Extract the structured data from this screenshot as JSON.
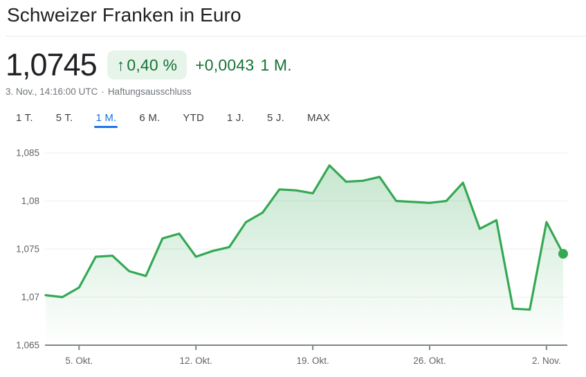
{
  "header": {
    "title": "Schweizer Franken in Euro"
  },
  "quote": {
    "price": "1,0745",
    "change_arrow": "↑",
    "change_percent": "0,40 %",
    "change_abs": "+0,0043",
    "change_period": "1 M.",
    "timestamp": "3. Nov., 14:16:00 UTC",
    "separator": "·",
    "disclaimer": "Haftungsausschluss"
  },
  "tabs": [
    {
      "label": "1 T."
    },
    {
      "label": "5 T."
    },
    {
      "label": "1 M."
    },
    {
      "label": "6 M."
    },
    {
      "label": "YTD"
    },
    {
      "label": "1 J."
    },
    {
      "label": "5 J."
    },
    {
      "label": "MAX"
    }
  ],
  "colors": {
    "line_green": "#34a853",
    "text_green": "#137333",
    "badge_bg": "#e6f4ea",
    "active_tab_blue": "#1a73e8",
    "axis_gray": "#80868b",
    "grid_gray": "#eceef0"
  },
  "chart_data": {
    "type": "line",
    "title": "Schweizer Franken in Euro",
    "subtitle": "1 M.",
    "values": [
      1.0702,
      1.07,
      1.071,
      1.0742,
      1.0743,
      1.0727,
      1.0722,
      1.0761,
      1.0766,
      1.0742,
      1.0748,
      1.0752,
      1.0778,
      1.0788,
      1.0812,
      1.0811,
      1.0808,
      1.0837,
      1.082,
      1.0821,
      1.0825,
      1.08,
      1.0799,
      1.0798,
      1.08,
      1.0819,
      1.0771,
      1.078,
      1.0688,
      1.0687,
      1.0778,
      1.0745
    ],
    "x_ticks": [
      {
        "label": "5. Okt.",
        "index": 2
      },
      {
        "label": "12. Okt.",
        "index": 9
      },
      {
        "label": "19. Okt.",
        "index": 16
      },
      {
        "label": "26. Okt.",
        "index": 23
      },
      {
        "label": "2. Nov.",
        "index": 30
      }
    ],
    "y_ticks": [
      {
        "label": "1,065",
        "value": 1.065
      },
      {
        "label": "1,07",
        "value": 1.07
      },
      {
        "label": "1,075",
        "value": 1.075
      },
      {
        "label": "1,08",
        "value": 1.08
      },
      {
        "label": "1,085",
        "value": 1.085
      }
    ],
    "ylim": [
      1.065,
      1.085
    ],
    "grid": "horizontal",
    "legend": false,
    "line_color": "#34a853",
    "end_dot": true
  }
}
